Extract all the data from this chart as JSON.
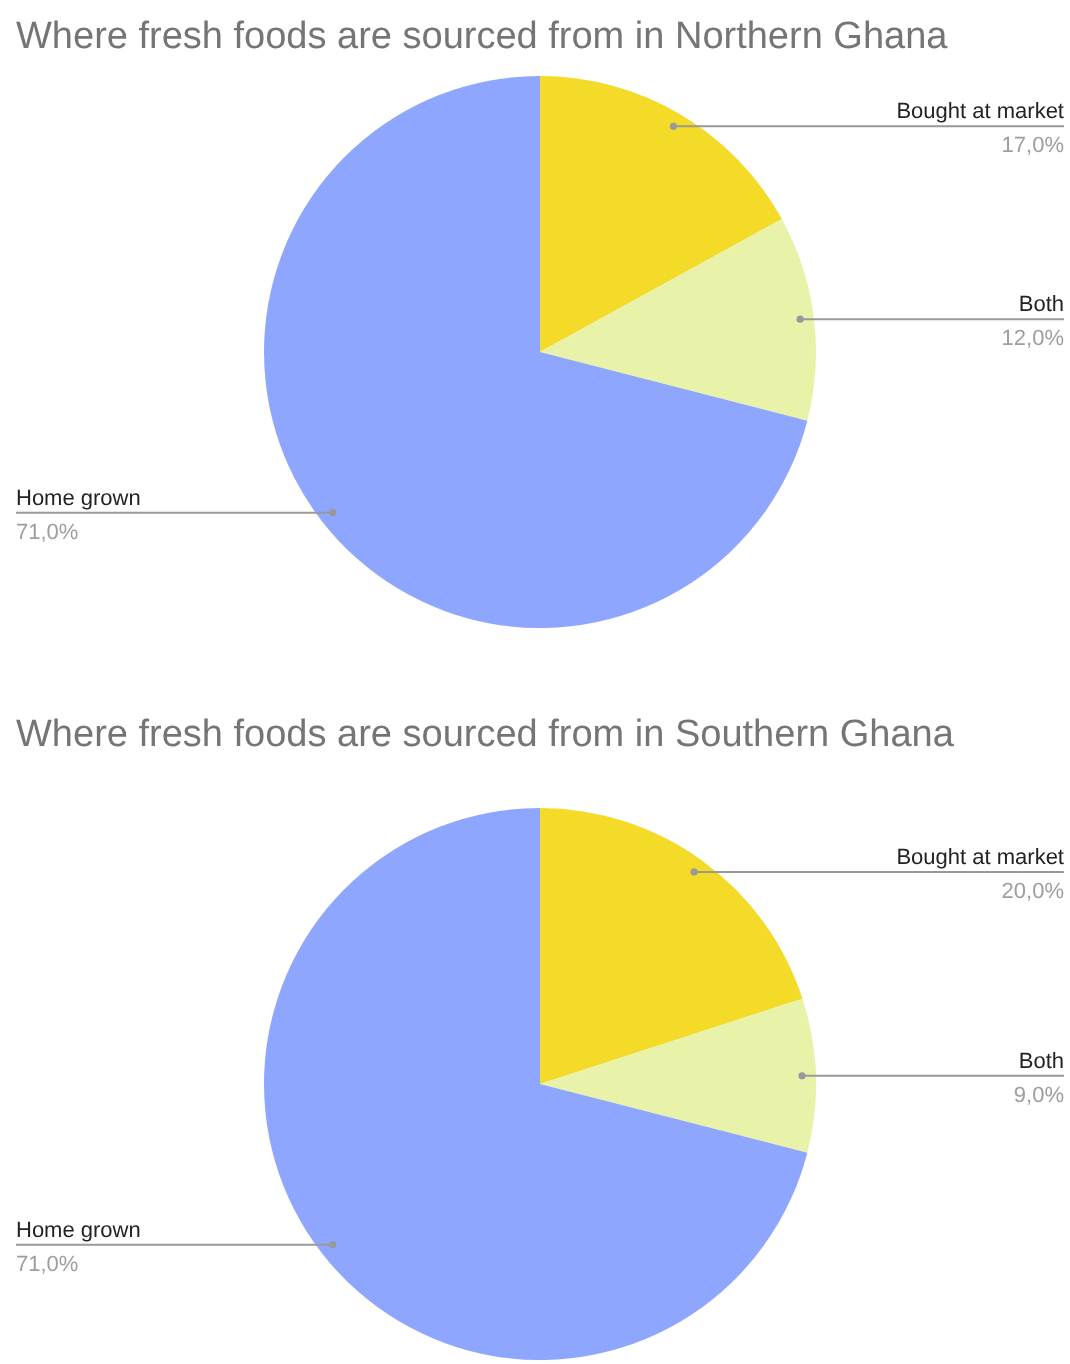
{
  "chart_data": [
    {
      "type": "pie",
      "title": "Where fresh foods are sourced from in Northern Ghana",
      "categories": [
        "Bought at market",
        "Both",
        "Home grown"
      ],
      "values": [
        17,
        12,
        71
      ],
      "value_labels": [
        "17,0%",
        "12,0%",
        "71,0%"
      ],
      "colors": [
        "#f3db27",
        "#e8f2a9",
        "#8fa6ff"
      ]
    },
    {
      "type": "pie",
      "title": "Where fresh foods are sourced from in Southern Ghana",
      "categories": [
        "Bought at market",
        "Both",
        "Home grown"
      ],
      "values": [
        20,
        9,
        71
      ],
      "value_labels": [
        "20,0%",
        "9,0%",
        "71,0%"
      ],
      "colors": [
        "#f3db27",
        "#e8f2a9",
        "#8fa6ff"
      ]
    }
  ]
}
